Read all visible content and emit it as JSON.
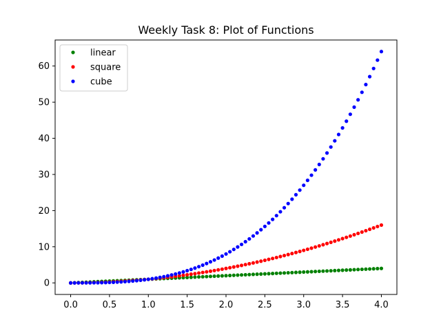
{
  "chart_data": {
    "type": "scatter",
    "title": "Weekly Task 8: Plot of Functions",
    "xlabel": "",
    "ylabel": "",
    "xlim": [
      -0.2,
      4.2
    ],
    "ylim": [
      -3.2,
      67.2
    ],
    "grid": false,
    "legend_position": "top-left",
    "x_ticks": [
      "0.0",
      "0.5",
      "1.0",
      "1.5",
      "2.0",
      "2.5",
      "3.0",
      "3.5",
      "4.0"
    ],
    "y_ticks": [
      "0",
      "10",
      "20",
      "30",
      "40",
      "50",
      "60"
    ],
    "x": [
      0.0,
      0.05,
      0.1,
      0.15,
      0.2,
      0.25,
      0.3,
      0.35,
      0.4,
      0.45,
      0.5,
      0.55,
      0.6,
      0.65,
      0.7,
      0.75,
      0.8,
      0.85,
      0.9,
      0.95,
      1.0,
      1.05,
      1.1,
      1.15,
      1.2,
      1.25,
      1.3,
      1.35,
      1.4,
      1.45,
      1.5,
      1.55,
      1.6,
      1.65,
      1.7,
      1.75,
      1.8,
      1.85,
      1.9,
      1.95,
      2.0,
      2.05,
      2.1,
      2.15,
      2.2,
      2.25,
      2.3,
      2.35,
      2.4,
      2.45,
      2.5,
      2.55,
      2.6,
      2.65,
      2.7,
      2.75,
      2.8,
      2.85,
      2.9,
      2.95,
      3.0,
      3.05,
      3.1,
      3.15,
      3.2,
      3.25,
      3.3,
      3.35,
      3.4,
      3.45,
      3.5,
      3.55,
      3.6,
      3.65,
      3.7,
      3.75,
      3.8,
      3.85,
      3.9,
      3.95,
      4.0
    ],
    "series": [
      {
        "name": "linear",
        "color": "#008000",
        "values": [
          0.0,
          0.05,
          0.1,
          0.15,
          0.2,
          0.25,
          0.3,
          0.35,
          0.4,
          0.45,
          0.5,
          0.55,
          0.6,
          0.65,
          0.7,
          0.75,
          0.8,
          0.85,
          0.9,
          0.95,
          1.0,
          1.05,
          1.1,
          1.15,
          1.2,
          1.25,
          1.3,
          1.35,
          1.4,
          1.45,
          1.5,
          1.55,
          1.6,
          1.65,
          1.7,
          1.75,
          1.8,
          1.85,
          1.9,
          1.95,
          2.0,
          2.05,
          2.1,
          2.15,
          2.2,
          2.25,
          2.3,
          2.35,
          2.4,
          2.45,
          2.5,
          2.55,
          2.6,
          2.65,
          2.7,
          2.75,
          2.8,
          2.85,
          2.9,
          2.95,
          3.0,
          3.05,
          3.1,
          3.15,
          3.2,
          3.25,
          3.3,
          3.35,
          3.4,
          3.45,
          3.5,
          3.55,
          3.6,
          3.65,
          3.7,
          3.75,
          3.8,
          3.85,
          3.9,
          3.95,
          4.0
        ]
      },
      {
        "name": "square",
        "color": "#ff0000",
        "values": [
          0.0,
          0.0025,
          0.01,
          0.0225,
          0.04,
          0.0625,
          0.09,
          0.1225,
          0.16,
          0.2025,
          0.25,
          0.3025,
          0.36,
          0.4225,
          0.49,
          0.5625,
          0.64,
          0.7225,
          0.81,
          0.9025,
          1.0,
          1.1025,
          1.21,
          1.3225,
          1.44,
          1.5625,
          1.69,
          1.8225,
          1.96,
          2.1025,
          2.25,
          2.4025,
          2.56,
          2.7225,
          2.89,
          3.0625,
          3.24,
          3.4225,
          3.61,
          3.8025,
          4.0,
          4.2025,
          4.41,
          4.6225,
          4.84,
          5.0625,
          5.29,
          5.5225,
          5.76,
          6.0025,
          6.25,
          6.5025,
          6.76,
          7.0225,
          7.29,
          7.5625,
          7.84,
          8.1225,
          8.41,
          8.7025,
          9.0,
          9.3025,
          9.61,
          9.9225,
          10.24,
          10.5625,
          10.89,
          11.2225,
          11.56,
          11.9025,
          12.25,
          12.6025,
          12.96,
          13.3225,
          13.69,
          14.0625,
          14.44,
          14.8225,
          15.21,
          15.6025,
          16.0
        ]
      },
      {
        "name": "cube",
        "color": "#0000ff",
        "values": [
          0.0,
          0.000125,
          0.001,
          0.003375,
          0.008,
          0.015625,
          0.027,
          0.042875,
          0.064,
          0.091125,
          0.125,
          0.166375,
          0.216,
          0.274625,
          0.343,
          0.421875,
          0.512,
          0.614125,
          0.729,
          0.857375,
          1.0,
          1.157625,
          1.331,
          1.520875,
          1.728,
          1.953125,
          2.197,
          2.460375,
          2.744,
          3.048625,
          3.375,
          3.723875,
          4.096,
          4.492125,
          4.913,
          5.359375,
          5.832,
          6.331625,
          6.859,
          7.414875,
          8.0,
          8.615125,
          9.261,
          9.938375,
          10.648,
          11.390625,
          12.167,
          12.977875,
          13.824,
          14.706125,
          15.625,
          16.581375,
          17.576,
          18.609625,
          19.683,
          20.796875,
          21.952,
          23.149125,
          24.389,
          25.672375,
          27.0,
          28.372625,
          29.791,
          31.255875,
          32.768,
          34.328125,
          35.937,
          37.595375,
          39.304,
          41.063625,
          42.875,
          44.738875,
          46.656,
          48.627125,
          50.653,
          52.734375,
          54.872,
          57.066625,
          59.319,
          61.629875,
          64.0
        ]
      }
    ]
  }
}
